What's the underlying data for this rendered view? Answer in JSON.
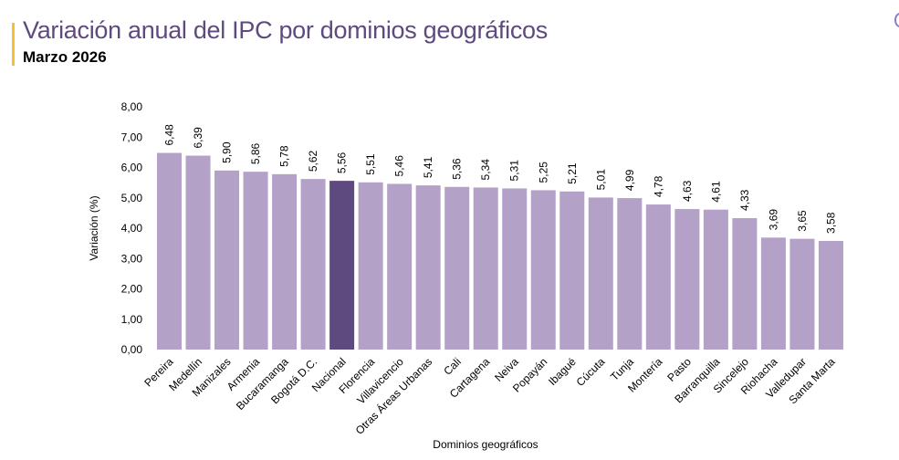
{
  "header": {
    "title": "Variación anual del IPC por dominios geográficos",
    "subtitle": "Marzo 2026"
  },
  "chart_data": {
    "type": "bar",
    "title": "Variación anual del IPC por dominios geográficos",
    "subtitle": "Marzo 2026",
    "xlabel": "Dominios geográficos",
    "ylabel": "Variación (%)",
    "ylim": [
      0,
      8
    ],
    "yticks": [
      "0,00",
      "1,00",
      "2,00",
      "3,00",
      "4,00",
      "5,00",
      "6,00",
      "7,00",
      "8,00"
    ],
    "categories": [
      "Pereira",
      "Medellín",
      "Manizales",
      "Armenia",
      "Bucaramanga",
      "Bogotá D.C.",
      "Nacional",
      "Florencia",
      "Villavicencio",
      "Otras Áreas Urbanas",
      "Cali",
      "Cartagena",
      "Neiva",
      "Popayán",
      "Ibagué",
      "Cúcuta",
      "Tunja",
      "Montería",
      "Pasto",
      "Barranquilla",
      "Sincelejo",
      "Riohacha",
      "Valledupar",
      "Santa Marta"
    ],
    "values": [
      6.48,
      6.39,
      5.9,
      5.86,
      5.78,
      5.62,
      5.56,
      5.51,
      5.46,
      5.41,
      5.36,
      5.34,
      5.31,
      5.25,
      5.21,
      5.01,
      4.99,
      4.78,
      4.63,
      4.61,
      4.33,
      3.69,
      3.65,
      3.58
    ],
    "value_labels": [
      "6,48",
      "6,39",
      "5,90",
      "5,86",
      "5,78",
      "5,62",
      "5,56",
      "5,51",
      "5,46",
      "5,41",
      "5,36",
      "5,34",
      "5,31",
      "5,25",
      "5,21",
      "5,01",
      "4,99",
      "4,78",
      "4,63",
      "4,61",
      "4,33",
      "3,69",
      "3,65",
      "3,58"
    ],
    "highlight": "Nacional",
    "colors": {
      "bar": "#b3a1c8",
      "highlight": "#5e4a7e"
    },
    "grid": false,
    "legend": "none"
  }
}
